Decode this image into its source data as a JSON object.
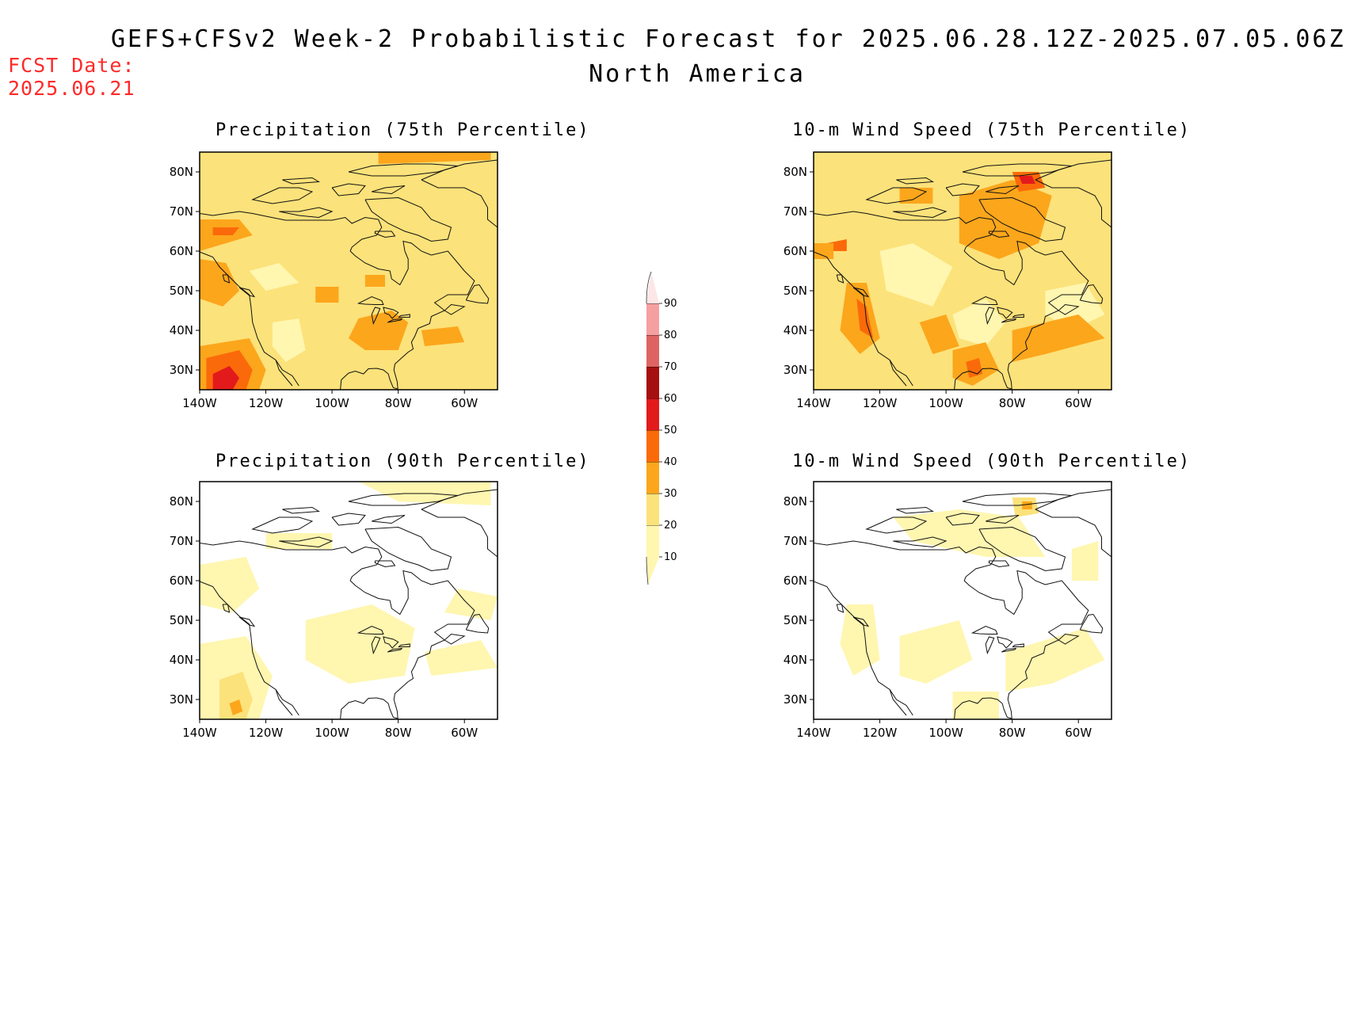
{
  "header": {
    "title_line1": "GEFS+CFSv2 Week-2 Probabilistic Forecast for 2025.06.28.12Z-2025.07.05.06Z",
    "title_line2": "North America",
    "fcst_label": "FCST Date:",
    "fcst_date": "2025.06.21"
  },
  "axes": {
    "lon_ticks": [
      "140W",
      "120W",
      "100W",
      "80W",
      "60W"
    ],
    "lat_ticks": [
      "80N",
      "70N",
      "60N",
      "50N",
      "40N",
      "30N"
    ]
  },
  "panels": [
    {
      "title": "Precipitation (75th Percentile)"
    },
    {
      "title": "10-m Wind Speed (75th Percentile)"
    },
    {
      "title": "Precipitation (90th Percentile)"
    },
    {
      "title": "10-m Wind Speed (90th Percentile)"
    }
  ],
  "legend": {
    "labels": [
      "90",
      "80",
      "70",
      "60",
      "50",
      "40",
      "30",
      "20",
      "10"
    ],
    "colors": {
      "c10": "#fff6b0",
      "c20": "#fce27a",
      "c30": "#fca61c",
      "c40": "#fb6a0a",
      "c50": "#e31a1c",
      "c60": "#a50f0f",
      "c70": "#de6464",
      "c80": "#f5a0a0",
      "c90": "#fde6e6"
    }
  }
}
